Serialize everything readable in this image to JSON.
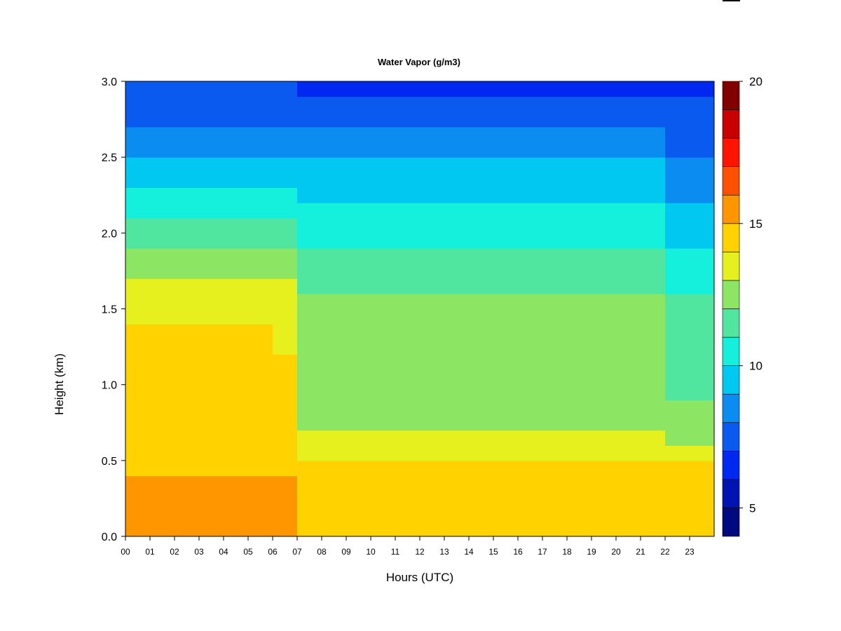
{
  "chart_data": {
    "type": "heatmap",
    "title": "Water Vapor (g/m3)",
    "xlabel": "Hours (UTC)",
    "ylabel": "Height (km)",
    "xlim": [
      0,
      24
    ],
    "ylim": [
      0,
      3.0
    ],
    "x_ticks": [
      "00",
      "01",
      "02",
      "03",
      "04",
      "05",
      "06",
      "07",
      "08",
      "09",
      "10",
      "11",
      "12",
      "13",
      "14",
      "15",
      "16",
      "17",
      "18",
      "19",
      "20",
      "21",
      "22",
      "23"
    ],
    "y_ticks": [
      "0.0",
      "0.5",
      "1.0",
      "1.5",
      "2.0",
      "2.5",
      "3.0"
    ],
    "colorbar": {
      "range": [
        4,
        20
      ],
      "step": 1,
      "tick_labels": [
        "5",
        "10",
        "15",
        "20"
      ],
      "tick_values": [
        5,
        10,
        15,
        20
      ],
      "colors": [
        "#000a80",
        "#0014b4",
        "#0028f0",
        "#0a5af0",
        "#0a8cf0",
        "#00c8f0",
        "#14f0dc",
        "#50e6a0",
        "#8ce664",
        "#e6f01e",
        "#ffd200",
        "#ff9600",
        "#ff5000",
        "#ff1400",
        "#c80000",
        "#820000"
      ]
    },
    "profile_height_km": [
      0.0,
      0.1,
      0.2,
      0.3,
      0.4,
      0.5,
      0.6,
      0.7,
      0.8,
      0.9,
      1.0,
      1.1,
      1.2,
      1.3,
      1.4,
      1.5,
      1.6,
      1.7,
      1.8,
      1.9,
      2.0,
      2.1,
      2.2,
      2.3,
      2.4,
      2.5,
      2.6,
      2.7,
      2.8,
      2.9,
      3.0
    ],
    "time_hours": [
      0,
      1,
      2,
      3,
      4,
      5,
      6,
      7,
      8,
      9,
      10,
      11,
      12,
      13,
      14,
      15,
      16,
      17,
      18,
      19,
      20,
      21,
      22,
      23
    ],
    "water_vapor_g_m3": [
      [
        15.0,
        15.0,
        15.0,
        15.5,
        14.5,
        14.0,
        14.5,
        14.5,
        14.5,
        14.5,
        14.5,
        14.0,
        14.0,
        14.0,
        13.8,
        13.5,
        13.0,
        12.5,
        12.0,
        11.5,
        11.0,
        10.5,
        10.0,
        9.5,
        9.0,
        8.5,
        8.0,
        7.8,
        7.5,
        7.2,
        7.0
      ],
      [
        15.0,
        15.0,
        15.0,
        15.5,
        14.5,
        14.0,
        14.5,
        14.5,
        14.5,
        14.5,
        14.5,
        14.0,
        14.0,
        14.0,
        13.8,
        13.5,
        13.0,
        12.5,
        12.0,
        11.5,
        11.0,
        10.5,
        10.0,
        9.5,
        9.0,
        8.5,
        8.0,
        7.8,
        7.5,
        7.2,
        7.0
      ],
      [
        15.0,
        15.0,
        15.0,
        15.5,
        14.5,
        14.0,
        14.5,
        14.5,
        14.5,
        14.5,
        14.5,
        14.0,
        14.0,
        14.0,
        13.8,
        13.5,
        13.0,
        12.5,
        12.0,
        11.5,
        11.0,
        10.5,
        10.0,
        9.5,
        9.0,
        8.5,
        8.0,
        7.8,
        7.5,
        7.2,
        7.0
      ],
      [
        15.0,
        15.0,
        15.0,
        15.5,
        14.5,
        14.0,
        14.5,
        14.5,
        14.5,
        14.5,
        14.5,
        14.0,
        14.0,
        14.0,
        13.8,
        13.5,
        13.0,
        12.5,
        12.0,
        11.5,
        11.0,
        10.5,
        10.0,
        9.5,
        9.0,
        8.5,
        8.0,
        7.8,
        7.5,
        7.2,
        7.0
      ],
      [
        15.0,
        15.0,
        15.0,
        15.5,
        14.5,
        14.0,
        14.5,
        14.5,
        14.5,
        14.5,
        14.5,
        14.0,
        14.0,
        14.0,
        13.8,
        13.5,
        13.0,
        12.5,
        12.0,
        11.5,
        11.0,
        10.5,
        10.0,
        9.5,
        9.0,
        8.5,
        8.0,
        7.8,
        7.5,
        7.2,
        7.0
      ],
      [
        15.0,
        15.0,
        15.0,
        15.5,
        14.5,
        14.0,
        14.5,
        14.5,
        14.5,
        14.5,
        14.5,
        14.0,
        14.0,
        14.0,
        13.8,
        13.5,
        13.0,
        12.5,
        12.0,
        11.5,
        11.0,
        10.5,
        10.0,
        9.5,
        9.0,
        8.5,
        8.0,
        7.8,
        7.5,
        7.2,
        7.0
      ],
      [
        15.0,
        15.0,
        15.0,
        15.0,
        14.3,
        14.0,
        14.0,
        14.0,
        14.0,
        14.0,
        14.0,
        14.0,
        13.5,
        13.5,
        13.5,
        13.2,
        13.0,
        12.5,
        12.0,
        11.5,
        11.0,
        10.5,
        10.0,
        9.5,
        9.0,
        8.5,
        8.0,
        7.8,
        7.5,
        7.2,
        7.0
      ],
      [
        14.5,
        14.5,
        14.0,
        14.0,
        14.0,
        13.5,
        13.0,
        12.8,
        12.5,
        12.5,
        12.5,
        12.5,
        12.3,
        12.3,
        12.2,
        12.0,
        11.8,
        11.5,
        11.0,
        10.8,
        10.5,
        10.0,
        9.8,
        9.5,
        9.0,
        8.5,
        8.0,
        7.5,
        7.0,
        6.8,
        6.5
      ],
      [
        14.5,
        14.5,
        14.0,
        14.0,
        14.0,
        13.5,
        13.0,
        12.8,
        12.5,
        12.5,
        12.5,
        12.5,
        12.3,
        12.3,
        12.2,
        12.0,
        11.8,
        11.5,
        11.0,
        10.8,
        10.5,
        10.0,
        9.8,
        9.5,
        9.0,
        8.5,
        8.0,
        7.5,
        7.0,
        6.8,
        6.5
      ],
      [
        14.5,
        14.5,
        14.0,
        14.0,
        14.0,
        13.5,
        13.0,
        12.8,
        12.5,
        12.5,
        12.5,
        12.5,
        12.3,
        12.3,
        12.2,
        12.0,
        11.8,
        11.5,
        11.0,
        10.8,
        10.5,
        10.0,
        9.8,
        9.5,
        9.0,
        8.5,
        8.0,
        7.5,
        7.0,
        6.8,
        6.5
      ],
      [
        14.5,
        14.5,
        14.0,
        14.0,
        14.0,
        13.5,
        13.0,
        12.8,
        12.5,
        12.5,
        12.5,
        12.5,
        12.3,
        12.3,
        12.2,
        12.0,
        11.8,
        11.5,
        11.0,
        10.8,
        10.5,
        10.0,
        9.8,
        9.5,
        9.0,
        8.5,
        8.0,
        7.5,
        7.0,
        6.8,
        6.5
      ],
      [
        14.5,
        14.5,
        14.0,
        14.0,
        14.0,
        13.5,
        13.0,
        12.8,
        12.5,
        12.5,
        12.5,
        12.5,
        12.3,
        12.3,
        12.2,
        12.0,
        11.8,
        11.5,
        11.0,
        10.8,
        10.5,
        10.0,
        9.8,
        9.5,
        9.0,
        8.5,
        8.0,
        7.5,
        7.0,
        6.8,
        6.5
      ],
      [
        14.5,
        14.5,
        14.0,
        14.0,
        14.0,
        13.5,
        13.0,
        12.8,
        12.5,
        12.5,
        12.5,
        12.5,
        12.3,
        12.3,
        12.2,
        12.0,
        11.8,
        11.5,
        11.0,
        10.8,
        10.5,
        10.0,
        9.8,
        9.5,
        9.0,
        8.5,
        8.0,
        7.5,
        7.0,
        6.8,
        6.5
      ],
      [
        14.5,
        14.5,
        14.0,
        14.0,
        14.0,
        13.5,
        13.0,
        12.8,
        12.5,
        12.5,
        12.5,
        12.5,
        12.3,
        12.3,
        12.2,
        12.0,
        11.8,
        11.5,
        11.0,
        10.8,
        10.5,
        10.0,
        9.8,
        9.5,
        9.0,
        8.5,
        8.0,
        7.5,
        7.0,
        6.8,
        6.5
      ],
      [
        14.5,
        14.5,
        14.0,
        14.0,
        14.0,
        13.5,
        13.0,
        12.8,
        12.5,
        12.5,
        12.5,
        12.5,
        12.3,
        12.3,
        12.2,
        12.0,
        11.8,
        11.5,
        11.0,
        10.8,
        10.5,
        10.0,
        9.8,
        9.5,
        9.0,
        8.5,
        8.0,
        7.5,
        7.0,
        6.8,
        6.5
      ],
      [
        14.5,
        14.5,
        14.0,
        14.0,
        14.0,
        13.5,
        13.0,
        12.8,
        12.5,
        12.5,
        12.5,
        12.5,
        12.3,
        12.3,
        12.2,
        12.0,
        11.8,
        11.5,
        11.0,
        10.8,
        10.5,
        10.0,
        9.8,
        9.5,
        9.0,
        8.5,
        8.0,
        7.5,
        7.0,
        6.8,
        6.5
      ],
      [
        14.5,
        14.5,
        14.0,
        14.0,
        14.0,
        13.5,
        13.0,
        12.8,
        12.5,
        12.5,
        12.5,
        12.5,
        12.3,
        12.3,
        12.2,
        12.0,
        11.8,
        11.5,
        11.0,
        10.8,
        10.5,
        10.0,
        9.8,
        9.5,
        9.0,
        8.5,
        8.0,
        7.5,
        7.0,
        6.8,
        6.5
      ],
      [
        14.5,
        14.5,
        14.0,
        14.0,
        14.0,
        13.5,
        13.0,
        12.8,
        12.5,
        12.5,
        12.5,
        12.5,
        12.3,
        12.3,
        12.2,
        12.0,
        11.8,
        11.5,
        11.0,
        10.8,
        10.5,
        10.0,
        9.8,
        9.5,
        9.0,
        8.5,
        8.0,
        7.5,
        7.0,
        6.8,
        6.5
      ],
      [
        14.5,
        14.5,
        14.0,
        14.0,
        14.0,
        13.5,
        13.0,
        12.8,
        12.5,
        12.5,
        12.5,
        12.5,
        12.3,
        12.3,
        12.2,
        12.0,
        11.8,
        11.5,
        11.0,
        10.8,
        10.5,
        10.0,
        9.8,
        9.5,
        9.0,
        8.5,
        8.0,
        7.5,
        7.0,
        6.8,
        6.5
      ],
      [
        14.5,
        14.5,
        14.0,
        14.0,
        14.0,
        13.5,
        13.0,
        12.8,
        12.5,
        12.5,
        12.5,
        12.5,
        12.3,
        12.3,
        12.2,
        12.0,
        11.8,
        11.5,
        11.0,
        10.8,
        10.5,
        10.0,
        9.8,
        9.5,
        9.0,
        8.5,
        8.0,
        7.5,
        7.0,
        6.8,
        6.5
      ],
      [
        14.5,
        14.5,
        14.0,
        14.0,
        14.0,
        13.5,
        13.0,
        12.8,
        12.5,
        12.5,
        12.5,
        12.5,
        12.3,
        12.3,
        12.2,
        12.0,
        11.8,
        11.5,
        11.0,
        10.8,
        10.5,
        10.0,
        9.8,
        9.5,
        9.0,
        8.5,
        8.0,
        7.5,
        7.0,
        6.8,
        6.5
      ],
      [
        14.5,
        14.5,
        14.0,
        14.0,
        14.0,
        13.5,
        13.0,
        12.8,
        12.5,
        12.5,
        12.5,
        12.5,
        12.3,
        12.3,
        12.2,
        12.0,
        11.8,
        11.5,
        11.0,
        10.8,
        10.5,
        10.0,
        9.8,
        9.5,
        9.0,
        8.5,
        8.0,
        7.5,
        7.0,
        6.8,
        6.5
      ],
      [
        14.5,
        14.5,
        14.0,
        14.0,
        14.0,
        13.2,
        12.5,
        12.2,
        12.0,
        11.8,
        11.5,
        11.5,
        11.3,
        11.3,
        11.2,
        11.0,
        10.8,
        10.5,
        10.0,
        9.8,
        9.5,
        9.0,
        8.8,
        8.5,
        8.0,
        7.8,
        7.5,
        7.2,
        7.0,
        6.8,
        6.5
      ],
      [
        14.5,
        14.5,
        14.0,
        14.0,
        14.0,
        13.2,
        12.5,
        12.2,
        12.0,
        11.8,
        11.5,
        11.5,
        11.3,
        11.3,
        11.2,
        11.0,
        10.8,
        10.5,
        10.0,
        9.8,
        9.5,
        9.0,
        8.8,
        8.5,
        8.0,
        7.8,
        7.5,
        7.2,
        7.0,
        6.8,
        6.5
      ]
    ]
  }
}
